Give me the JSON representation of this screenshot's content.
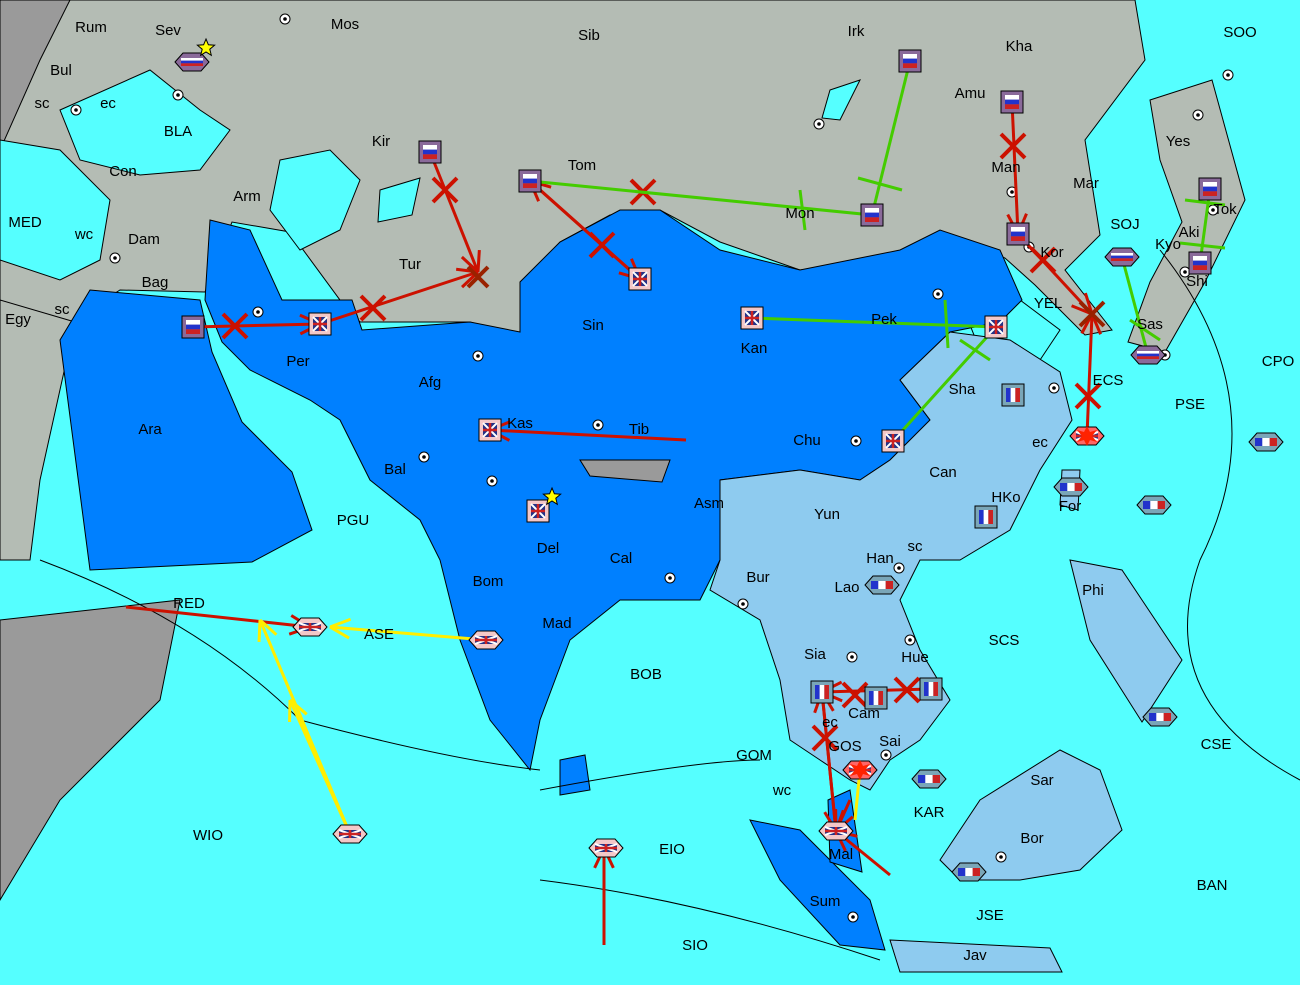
{
  "colors": {
    "sea": "#55ffff",
    "neutral_land": "#b4bcb4",
    "offmap": "#9a9a9a",
    "britain": "#0080ff",
    "france": "#8ecbef",
    "move_order": "#cc1100",
    "support_order": "#44cc00",
    "convoy_order": "#ffee00"
  },
  "labels": [
    "Rum",
    "Sev",
    "Mos",
    "Sib",
    "Irk",
    "Kha",
    "SOO",
    "Bul",
    "sc",
    "ec",
    "BLA",
    "Kir",
    "Amu",
    "Yes",
    "Con",
    "Tom",
    "Man",
    "Mar",
    "Tok",
    "MED",
    "wc",
    "Dam",
    "Arm",
    "Mon",
    "SOJ",
    "Kyo",
    "Aki",
    "Shi",
    "Tur",
    "Bag",
    "Kor",
    "YEL",
    "Egy",
    "sc",
    "Per",
    "Sin",
    "Kan",
    "Pek",
    "Sas",
    "CPO",
    "Afg",
    "Sha",
    "ECS",
    "PSE",
    "Ara",
    "Kas",
    "Tib",
    "Bal",
    "Chu",
    "ec",
    "Can",
    "PGU",
    "Asm",
    "HKo",
    "For",
    "Yun",
    "Del",
    "Cal",
    "sc",
    "Han",
    "Bur",
    "Lao",
    "Phi",
    "Bom",
    "RED",
    "ASE",
    "Mad",
    "Sia",
    "Hue",
    "SCS",
    "BOB",
    "Cam",
    "ec",
    "GOS",
    "Sai",
    "GOM",
    "wc",
    "CSE",
    "Sar",
    "KAR",
    "WIO",
    "Bor",
    "Mal",
    "EIO",
    "BAN",
    "Sum",
    "JSE",
    "SIO",
    "Jav"
  ],
  "units": [
    {
      "nation": "russia",
      "type": "fleet",
      "province": "Sev"
    },
    {
      "nation": "russia",
      "type": "army",
      "province": "Kir"
    },
    {
      "nation": "russia",
      "type": "army",
      "province": "Tom"
    },
    {
      "nation": "russia",
      "type": "army",
      "province": "Irk"
    },
    {
      "nation": "russia",
      "type": "army",
      "province": "Amu"
    },
    {
      "nation": "russia",
      "type": "army",
      "province": "Man"
    },
    {
      "nation": "russia",
      "type": "army",
      "province": "Mon"
    },
    {
      "nation": "russia",
      "type": "army",
      "province": "Bag"
    },
    {
      "nation": "russia",
      "type": "army",
      "province": "Tok"
    },
    {
      "nation": "russia",
      "type": "army",
      "province": "Shi"
    },
    {
      "nation": "russia",
      "type": "fleet",
      "province": "SOJ"
    },
    {
      "nation": "russia",
      "type": "fleet",
      "province": "Sas"
    },
    {
      "nation": "britain",
      "type": "army",
      "province": "Per"
    },
    {
      "nation": "britain",
      "type": "army",
      "province": "Sin"
    },
    {
      "nation": "britain",
      "type": "army",
      "province": "Kan"
    },
    {
      "nation": "britain",
      "type": "army",
      "province": "Pek"
    },
    {
      "nation": "britain",
      "type": "army",
      "province": "Kas"
    },
    {
      "nation": "britain",
      "type": "army",
      "province": "Del"
    },
    {
      "nation": "britain",
      "type": "army",
      "province": "Chu"
    },
    {
      "nation": "britain",
      "type": "fleet",
      "province": "RED"
    },
    {
      "nation": "britain",
      "type": "fleet",
      "province": "ASE"
    },
    {
      "nation": "britain",
      "type": "fleet",
      "province": "WIO"
    },
    {
      "nation": "britain",
      "type": "fleet",
      "province": "EIO"
    },
    {
      "nation": "britain",
      "type": "fleet",
      "province": "Mal"
    },
    {
      "nation": "britain",
      "type": "fleet",
      "province": "ECS",
      "dislodged": true
    },
    {
      "nation": "britain",
      "type": "fleet",
      "province": "GOS",
      "dislodged": true
    },
    {
      "nation": "france",
      "type": "army",
      "province": "Sha"
    },
    {
      "nation": "france",
      "type": "army",
      "province": "HKo"
    },
    {
      "nation": "france",
      "type": "army",
      "province": "Sia"
    },
    {
      "nation": "france",
      "type": "army",
      "province": "Cam"
    },
    {
      "nation": "france",
      "type": "army",
      "province": "Hue"
    },
    {
      "nation": "france",
      "type": "fleet",
      "province": "Han"
    },
    {
      "nation": "france",
      "type": "fleet",
      "province": "For"
    },
    {
      "nation": "france",
      "type": "fleet",
      "province": "CPO"
    },
    {
      "nation": "france",
      "type": "fleet",
      "province": "PSE"
    },
    {
      "nation": "france",
      "type": "fleet",
      "province": "CSE"
    },
    {
      "nation": "france",
      "type": "fleet",
      "province": "KAR"
    },
    {
      "nation": "france",
      "type": "fleet",
      "province": "Bor"
    }
  ],
  "capital_stars": [
    "Sev",
    "Del"
  ]
}
